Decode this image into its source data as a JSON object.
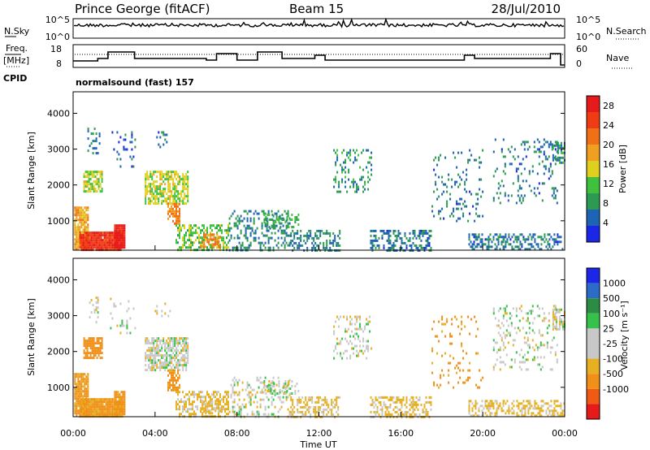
{
  "header": {
    "station": "Prince George (fitACF)",
    "beam": "Beam 15",
    "date": "28/Jul/2010"
  },
  "noise_panel": {
    "left_label": "N.Sky",
    "right_label": "N.Search",
    "left_ticks": [
      "10^5",
      "10^0"
    ],
    "right_ticks": [
      "10^5",
      "10^0"
    ]
  },
  "freq_panel": {
    "left_label_1": "Freq.",
    "left_label_2": "[MHz]",
    "right_label": "Nave",
    "left_ticks": [
      "18",
      "8"
    ],
    "right_ticks": [
      "60",
      "0"
    ]
  },
  "cpid": {
    "label": "CPID",
    "text": "normalsound (fast) 157"
  },
  "colors": {
    "power_scale": [
      "#1c26e6",
      "#1e64b4",
      "#2d9a52",
      "#3fc13d",
      "#dfd020",
      "#f0a020",
      "#f07018",
      "#f03c14",
      "#e61a1a"
    ],
    "velocity_scale": [
      "#1c26e6",
      "#2a6cc8",
      "#2c8c44",
      "#36c24a",
      "#c8c8c8",
      "#c8c8c8",
      "#e6b020",
      "#f09018",
      "#f05a14",
      "#e61a1a"
    ]
  },
  "chart_data": [
    {
      "type": "heatmap",
      "name": "power",
      "ylabel": "Slant Range [km]",
      "yticks": [
        1000,
        2000,
        3000,
        4000
      ],
      "ylim": [
        180,
        4600
      ],
      "xlim": [
        0,
        24
      ],
      "colorbar_label": "Power [dB]",
      "colorbar_ticks": [
        4,
        8,
        12,
        16,
        20,
        24,
        28
      ],
      "colorbar_range": [
        0,
        30
      ],
      "grid": false,
      "blobs": [
        {
          "t": [
            0.05,
            0.7
          ],
          "r": [
            200,
            1400
          ],
          "v": 18,
          "d": 0.85
        },
        {
          "t": [
            0.3,
            2.4
          ],
          "r": [
            200,
            700
          ],
          "v": 26,
          "d": 0.95
        },
        {
          "t": [
            2.0,
            2.5
          ],
          "r": [
            250,
            900
          ],
          "v": 28,
          "d": 0.95
        },
        {
          "t": [
            0.5,
            1.4
          ],
          "r": [
            1800,
            2400
          ],
          "v": 14,
          "d": 0.75
        },
        {
          "t": [
            0.7,
            1.3
          ],
          "r": [
            2800,
            3600
          ],
          "v": 6,
          "d": 0.2
        },
        {
          "t": [
            1.8,
            3.0
          ],
          "r": [
            2500,
            3500
          ],
          "v": 5,
          "d": 0.12
        },
        {
          "t": [
            3.5,
            5.6
          ],
          "r": [
            1500,
            2400
          ],
          "v": 14,
          "d": 0.7
        },
        {
          "t": [
            4.6,
            5.2
          ],
          "r": [
            900,
            1500
          ],
          "v": 20,
          "d": 0.7
        },
        {
          "t": [
            3.9,
            4.7
          ],
          "r": [
            3000,
            3500
          ],
          "v": 6,
          "d": 0.12
        },
        {
          "t": [
            5.0,
            7.6
          ],
          "r": [
            200,
            900
          ],
          "v": 12,
          "d": 0.5
        },
        {
          "t": [
            6.2,
            7.2
          ],
          "r": [
            280,
            650
          ],
          "v": 20,
          "d": 0.55
        },
        {
          "t": [
            7.6,
            10.6
          ],
          "r": [
            200,
            1300
          ],
          "v": 7,
          "d": 0.28
        },
        {
          "t": [
            9.3,
            11.0
          ],
          "r": [
            800,
            1200
          ],
          "v": 10,
          "d": 0.4
        },
        {
          "t": [
            10.6,
            13.0
          ],
          "r": [
            200,
            750
          ],
          "v": 7,
          "d": 0.45
        },
        {
          "t": [
            12.7,
            14.6
          ],
          "r": [
            1800,
            3000
          ],
          "v": 8,
          "d": 0.22
        },
        {
          "t": [
            14.5,
            17.5
          ],
          "r": [
            200,
            750
          ],
          "v": 6,
          "d": 0.45
        },
        {
          "t": [
            17.5,
            20.0
          ],
          "r": [
            1000,
            3000
          ],
          "v": 6,
          "d": 0.12
        },
        {
          "t": [
            19.3,
            21.0
          ],
          "r": [
            200,
            650
          ],
          "v": 6,
          "d": 0.45
        },
        {
          "t": [
            20.5,
            23.6
          ],
          "r": [
            1500,
            3300
          ],
          "v": 6,
          "d": 0.15
        },
        {
          "t": [
            23.4,
            24.0
          ],
          "r": [
            2600,
            3200
          ],
          "v": 8,
          "d": 0.55
        },
        {
          "t": [
            21.0,
            24.0
          ],
          "r": [
            200,
            650
          ],
          "v": 6,
          "d": 0.45
        }
      ]
    },
    {
      "type": "heatmap",
      "name": "velocity",
      "ylabel": "Slant Range [km]",
      "yticks": [
        1000,
        2000,
        3000,
        4000
      ],
      "ylim": [
        180,
        4600
      ],
      "xlim": [
        0,
        24
      ],
      "colorbar_label": "Velocity [m s⁻¹]",
      "colorbar_ticks": [
        -1000,
        -500,
        -100,
        -25,
        25,
        100,
        500,
        1000
      ],
      "grid": false,
      "xticks": [
        "00:00",
        "04:00",
        "08:00",
        "12:00",
        "16:00",
        "20:00",
        "00:00"
      ],
      "xtick_values": [
        0,
        4,
        8,
        12,
        16,
        20,
        24
      ],
      "xlabel": "Time UT",
      "blobs": [
        {
          "t": [
            0.05,
            0.7
          ],
          "r": [
            200,
            1400
          ],
          "v": -120,
          "d": 0.85
        },
        {
          "t": [
            0.3,
            2.4
          ],
          "r": [
            200,
            700
          ],
          "v": -120,
          "d": 0.95
        },
        {
          "t": [
            2.0,
            2.5
          ],
          "r": [
            250,
            900
          ],
          "v": -120,
          "d": 0.95
        },
        {
          "t": [
            0.5,
            1.4
          ],
          "r": [
            1800,
            2400
          ],
          "v": -140,
          "d": 0.75
        },
        {
          "t": [
            0.7,
            1.3
          ],
          "r": [
            2800,
            3600
          ],
          "v": 0,
          "d": 0.2
        },
        {
          "t": [
            1.8,
            3.0
          ],
          "r": [
            2500,
            3500
          ],
          "v": 0,
          "d": 0.12
        },
        {
          "t": [
            3.5,
            5.6
          ],
          "r": [
            1500,
            2400
          ],
          "v": 0,
          "d": 0.7
        },
        {
          "t": [
            4.6,
            5.2
          ],
          "r": [
            900,
            1500
          ],
          "v": -120,
          "d": 0.7
        },
        {
          "t": [
            3.9,
            4.7
          ],
          "r": [
            3000,
            3500
          ],
          "v": 0,
          "d": 0.12
        },
        {
          "t": [
            5.0,
            7.6
          ],
          "r": [
            200,
            900
          ],
          "v": -40,
          "d": 0.5
        },
        {
          "t": [
            6.2,
            7.2
          ],
          "r": [
            280,
            650
          ],
          "v": -40,
          "d": 0.55
        },
        {
          "t": [
            7.6,
            10.6
          ],
          "r": [
            200,
            1300
          ],
          "v": 0,
          "d": 0.28
        },
        {
          "t": [
            9.3,
            11.0
          ],
          "r": [
            800,
            1200
          ],
          "v": 0,
          "d": 0.4
        },
        {
          "t": [
            10.6,
            13.0
          ],
          "r": [
            200,
            750
          ],
          "v": -40,
          "d": 0.45
        },
        {
          "t": [
            12.7,
            14.6
          ],
          "r": [
            1800,
            3000
          ],
          "v": 0,
          "d": 0.22
        },
        {
          "t": [
            14.5,
            17.5
          ],
          "r": [
            200,
            750
          ],
          "v": -40,
          "d": 0.45
        },
        {
          "t": [
            17.5,
            20.0
          ],
          "r": [
            1000,
            3000
          ],
          "v": -120,
          "d": 0.12
        },
        {
          "t": [
            19.3,
            21.0
          ],
          "r": [
            200,
            650
          ],
          "v": -40,
          "d": 0.45
        },
        {
          "t": [
            20.5,
            23.6
          ],
          "r": [
            1500,
            3300
          ],
          "v": 0,
          "d": 0.15
        },
        {
          "t": [
            23.4,
            24.0
          ],
          "r": [
            2600,
            3200
          ],
          "v": 0,
          "d": 0.55
        },
        {
          "t": [
            21.0,
            24.0
          ],
          "r": [
            200,
            650
          ],
          "v": -40,
          "d": 0.45
        }
      ]
    }
  ]
}
